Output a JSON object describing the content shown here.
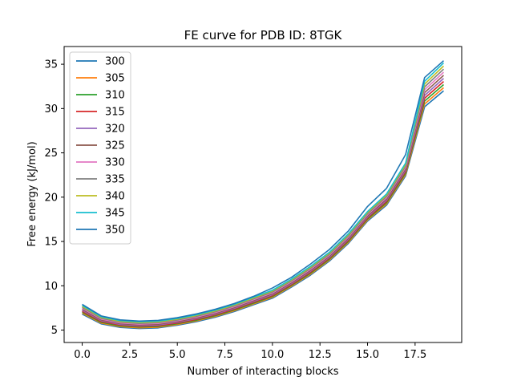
{
  "chart_data": {
    "type": "line",
    "title": "FE curve for PDB ID: 8TGK",
    "xlabel": "Number of interacting blocks",
    "ylabel": "Free energy (kJ/mol)",
    "xlim": [
      -0.95,
      19.95
    ],
    "ylim": [
      3.6,
      37
    ],
    "xticks": [
      0.0,
      2.5,
      5.0,
      7.5,
      10.0,
      12.5,
      15.0,
      17.5
    ],
    "xtick_labels": [
      "0.0",
      "2.5",
      "5.0",
      "7.5",
      "10.0",
      "12.5",
      "15.0",
      "17.5"
    ],
    "yticks": [
      5,
      10,
      15,
      20,
      25,
      30,
      35
    ],
    "ytick_labels": [
      "5",
      "10",
      "15",
      "20",
      "25",
      "30",
      "35"
    ],
    "grid": false,
    "legend_position": "top-left",
    "x": [
      0,
      1,
      2,
      3,
      4,
      5,
      6,
      7,
      8,
      9,
      10,
      11,
      12,
      13,
      14,
      15,
      16,
      17,
      18,
      19
    ],
    "series": [
      {
        "name": "300",
        "color": "#1f77b4",
        "values": [
          6.8,
          5.7,
          5.3,
          5.18,
          5.25,
          5.55,
          5.95,
          6.45,
          7.1,
          7.85,
          8.6,
          9.85,
          11.2,
          12.8,
          14.8,
          17.3,
          19.1,
          22.4,
          30.2,
          32.0
        ]
      },
      {
        "name": "305",
        "color": "#ff7f0e",
        "values": [
          6.91,
          5.79,
          5.39,
          5.26,
          5.33,
          5.63,
          6.04,
          6.54,
          7.19,
          7.95,
          8.7,
          9.95,
          11.31,
          12.91,
          14.92,
          17.42,
          19.24,
          22.56,
          30.52,
          32.35
        ]
      },
      {
        "name": "310",
        "color": "#2ca02c",
        "values": [
          7.02,
          5.88,
          5.47,
          5.35,
          5.42,
          5.72,
          6.12,
          6.63,
          7.28,
          8.04,
          8.8,
          10.05,
          11.42,
          13.02,
          15.04,
          17.54,
          19.38,
          22.72,
          30.84,
          32.7
        ]
      },
      {
        "name": "315",
        "color": "#d62728",
        "values": [
          7.13,
          5.97,
          5.56,
          5.43,
          5.5,
          5.8,
          6.21,
          6.72,
          7.37,
          8.14,
          8.9,
          10.15,
          11.53,
          13.13,
          15.16,
          17.66,
          19.52,
          22.88,
          31.16,
          33.05
        ]
      },
      {
        "name": "320",
        "color": "#9467bd",
        "values": [
          7.24,
          6.06,
          5.64,
          5.51,
          5.58,
          5.89,
          6.3,
          6.81,
          7.46,
          8.23,
          9.0,
          10.25,
          11.64,
          13.24,
          15.28,
          17.78,
          19.66,
          23.04,
          31.48,
          33.4
        ]
      },
      {
        "name": "325",
        "color": "#8c564b",
        "values": [
          7.35,
          6.15,
          5.73,
          5.6,
          5.67,
          5.97,
          6.38,
          6.9,
          7.55,
          8.33,
          9.1,
          10.35,
          11.75,
          13.35,
          15.4,
          17.9,
          19.8,
          23.2,
          31.8,
          33.75
        ]
      },
      {
        "name": "330",
        "color": "#e377c2",
        "values": [
          7.46,
          6.24,
          5.81,
          5.68,
          5.75,
          6.06,
          6.47,
          6.99,
          7.64,
          8.42,
          9.2,
          10.45,
          11.86,
          13.46,
          15.52,
          18.02,
          19.94,
          23.36,
          32.12,
          34.1
        ]
      },
      {
        "name": "335",
        "color": "#7f7f7f",
        "values": [
          7.57,
          6.33,
          5.9,
          5.76,
          5.84,
          6.14,
          6.56,
          7.08,
          7.73,
          8.52,
          9.3,
          10.55,
          11.97,
          13.57,
          15.64,
          18.14,
          20.08,
          23.52,
          32.44,
          34.45
        ]
      },
      {
        "name": "340",
        "color": "#bcbd22",
        "values": [
          7.68,
          6.42,
          5.98,
          5.85,
          5.92,
          6.23,
          6.64,
          7.17,
          7.82,
          8.61,
          9.4,
          10.65,
          12.08,
          13.68,
          15.76,
          18.26,
          20.22,
          23.68,
          32.76,
          34.8
        ]
      },
      {
        "name": "345",
        "color": "#17becf",
        "values": [
          7.79,
          6.51,
          6.07,
          5.93,
          6.01,
          6.31,
          6.73,
          7.26,
          7.91,
          8.71,
          9.5,
          10.75,
          12.19,
          13.79,
          15.88,
          18.38,
          20.36,
          23.84,
          33.08,
          35.15
        ]
      },
      {
        "name": "350",
        "color": "#1f77b4",
        "values": [
          7.9,
          6.6,
          6.15,
          6.02,
          6.1,
          6.4,
          6.82,
          7.35,
          8.0,
          8.8,
          9.75,
          10.95,
          12.45,
          14.1,
          16.2,
          18.95,
          21.0,
          24.8,
          33.5,
          35.4
        ]
      }
    ]
  }
}
